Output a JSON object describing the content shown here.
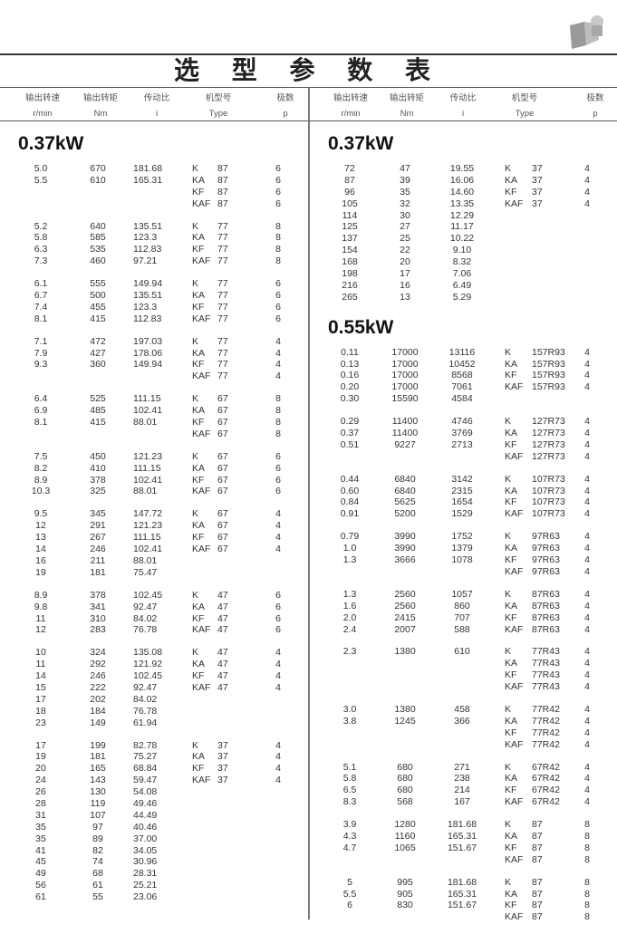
{
  "title": "选 型 参 数 表",
  "photo_icon": "gear-motor-photo",
  "headers": [
    {
      "cn": "输出转速",
      "en": "r/min"
    },
    {
      "cn": "输出转矩",
      "en": "Nm"
    },
    {
      "cn": "传动比",
      "en": "i"
    },
    {
      "cn": "机型号",
      "en": "Type"
    },
    {
      "cn": "极数",
      "en": "p"
    }
  ],
  "left": [
    {
      "power": "0.37kW",
      "groups": [
        [
          [
            "5.0",
            "670",
            "181.68",
            "K",
            "87",
            "6"
          ],
          [
            "5.5",
            "610",
            "165.31",
            "KA",
            "87",
            "6"
          ],
          [
            "",
            "",
            "",
            "KF",
            "87",
            "6"
          ],
          [
            "",
            "",
            "",
            "KAF",
            "87",
            "6"
          ]
        ],
        [
          [
            "5.2",
            "640",
            "135.51",
            "K",
            "77",
            "8"
          ],
          [
            "5.8",
            "585",
            "123.3",
            "KA",
            "77",
            "8"
          ],
          [
            "6.3",
            "535",
            "112.83",
            "KF",
            "77",
            "8"
          ],
          [
            "7.3",
            "460",
            "97.21",
            "KAF",
            "77",
            "8"
          ]
        ],
        [
          [
            "6.1",
            "555",
            "149.94",
            "K",
            "77",
            "6"
          ],
          [
            "6.7",
            "500",
            "135.51",
            "KA",
            "77",
            "6"
          ],
          [
            "7.4",
            "455",
            "123.3",
            "KF",
            "77",
            "6"
          ],
          [
            "8.1",
            "415",
            "112.83",
            "KAF",
            "77",
            "6"
          ]
        ],
        [
          [
            "7.1",
            "472",
            "197.03",
            "K",
            "77",
            "4"
          ],
          [
            "7.9",
            "427",
            "178.06",
            "KA",
            "77",
            "4"
          ],
          [
            "9.3",
            "360",
            "149.94",
            "KF",
            "77",
            "4"
          ],
          [
            "",
            "",
            "",
            "KAF",
            "77",
            "4"
          ]
        ],
        [
          [
            "6.4",
            "525",
            "111.15",
            "K",
            "67",
            "8"
          ],
          [
            "6.9",
            "485",
            "102.41",
            "KA",
            "67",
            "8"
          ],
          [
            "8.1",
            "415",
            "88.01",
            "KF",
            "67",
            "8"
          ],
          [
            "",
            "",
            "",
            "KAF",
            "67",
            "8"
          ]
        ],
        [
          [
            "7.5",
            "450",
            "121.23",
            "K",
            "67",
            "6"
          ],
          [
            "8.2",
            "410",
            "111.15",
            "KA",
            "67",
            "6"
          ],
          [
            "8.9",
            "378",
            "102.41",
            "KF",
            "67",
            "6"
          ],
          [
            "10.3",
            "325",
            "88.01",
            "KAF",
            "67",
            "6"
          ]
        ],
        [
          [
            "9.5",
            "345",
            "147.72",
            "K",
            "67",
            "4"
          ],
          [
            "12",
            "291",
            "121.23",
            "KA",
            "67",
            "4"
          ],
          [
            "13",
            "267",
            "111.15",
            "KF",
            "67",
            "4"
          ],
          [
            "14",
            "246",
            "102.41",
            "KAF",
            "67",
            "4"
          ],
          [
            "16",
            "211",
            "88.01",
            "",
            "",
            ""
          ],
          [
            "19",
            "181",
            "75.47",
            "",
            "",
            ""
          ]
        ],
        [
          [
            "8.9",
            "378",
            "102.45",
            "K",
            "47",
            "6"
          ],
          [
            "9.8",
            "341",
            "92.47",
            "KA",
            "47",
            "6"
          ],
          [
            "11",
            "310",
            "84.02",
            "KF",
            "47",
            "6"
          ],
          [
            "12",
            "283",
            "76.78",
            "KAF",
            "47",
            "6"
          ]
        ],
        [
          [
            "10",
            "324",
            "135.08",
            "K",
            "47",
            "4"
          ],
          [
            "11",
            "292",
            "121.92",
            "KA",
            "47",
            "4"
          ],
          [
            "14",
            "246",
            "102.45",
            "KF",
            "47",
            "4"
          ],
          [
            "15",
            "222",
            "92.47",
            "KAF",
            "47",
            "4"
          ],
          [
            "17",
            "202",
            "84.02",
            "",
            "",
            ""
          ],
          [
            "18",
            "184",
            "76.78",
            "",
            "",
            ""
          ],
          [
            "23",
            "149",
            "61.94",
            "",
            "",
            ""
          ]
        ],
        [
          [
            "17",
            "199",
            "82.78",
            "K",
            "37",
            "4"
          ],
          [
            "19",
            "181",
            "75.27",
            "KA",
            "37",
            "4"
          ],
          [
            "20",
            "165",
            "68.84",
            "KF",
            "37",
            "4"
          ],
          [
            "24",
            "143",
            "59.47",
            "KAF",
            "37",
            "4"
          ],
          [
            "26",
            "130",
            "54.08",
            "",
            "",
            ""
          ],
          [
            "28",
            "119",
            "49.46",
            "",
            "",
            ""
          ],
          [
            "31",
            "107",
            "44.49",
            "",
            "",
            ""
          ],
          [
            "35",
            "97",
            "40.46",
            "",
            "",
            ""
          ],
          [
            "35",
            "89",
            "37.00",
            "",
            "",
            ""
          ],
          [
            "41",
            "82",
            "34.05",
            "",
            "",
            ""
          ],
          [
            "45",
            "74",
            "30.96",
            "",
            "",
            ""
          ],
          [
            "49",
            "68",
            "28.31",
            "",
            "",
            ""
          ],
          [
            "56",
            "61",
            "25.21",
            "",
            "",
            ""
          ],
          [
            "61",
            "55",
            "23.06",
            "",
            "",
            ""
          ]
        ]
      ]
    }
  ],
  "right": [
    {
      "power": "0.37kW",
      "groups": [
        [
          [
            "72",
            "47",
            "19.55",
            "K",
            "37",
            "4"
          ],
          [
            "87",
            "39",
            "16.06",
            "KA",
            "37",
            "4"
          ],
          [
            "96",
            "35",
            "14.60",
            "KF",
            "37",
            "4"
          ],
          [
            "105",
            "32",
            "13.35",
            "KAF",
            "37",
            "4"
          ],
          [
            "114",
            "30",
            "12.29",
            "",
            "",
            ""
          ],
          [
            "125",
            "27",
            "11.17",
            "",
            "",
            ""
          ],
          [
            "137",
            "25",
            "10.22",
            "",
            "",
            ""
          ],
          [
            "154",
            "22",
            "9.10",
            "",
            "",
            ""
          ],
          [
            "168",
            "20",
            "8.32",
            "",
            "",
            ""
          ],
          [
            "198",
            "17",
            "7.06",
            "",
            "",
            ""
          ],
          [
            "216",
            "16",
            "6.49",
            "",
            "",
            ""
          ],
          [
            "265",
            "13",
            "5.29",
            "",
            "",
            ""
          ]
        ]
      ]
    },
    {
      "power": "0.55kW",
      "groups": [
        [
          [
            "0.11",
            "17000",
            "13116",
            "K",
            "157R93",
            "4"
          ],
          [
            "0.13",
            "17000",
            "10452",
            "KA",
            "157R93",
            "4"
          ],
          [
            "0.16",
            "17000",
            "8568",
            "KF",
            "157R93",
            "4"
          ],
          [
            "0.20",
            "17000",
            "7061",
            "KAF",
            "157R93",
            "4"
          ],
          [
            "0.30",
            "15590",
            "4584",
            "",
            "",
            ""
          ]
        ],
        [
          [
            "0.29",
            "11400",
            "4746",
            "K",
            "127R73",
            "4"
          ],
          [
            "0.37",
            "11400",
            "3769",
            "KA",
            "127R73",
            "4"
          ],
          [
            "0.51",
            "9227",
            "2713",
            "KF",
            "127R73",
            "4"
          ],
          [
            "",
            "",
            "",
            "KAF",
            "127R73",
            "4"
          ]
        ],
        [
          [
            "0.44",
            "6840",
            "3142",
            "K",
            "107R73",
            "4"
          ],
          [
            "0.60",
            "6840",
            "2315",
            "KA",
            "107R73",
            "4"
          ],
          [
            "0.84",
            "5625",
            "1654",
            "KF",
            "107R73",
            "4"
          ],
          [
            "0.91",
            "5200",
            "1529",
            "KAF",
            "107R73",
            "4"
          ]
        ],
        [
          [
            "0.79",
            "3990",
            "1752",
            "K",
            "97R63",
            "4"
          ],
          [
            "1.0",
            "3990",
            "1379",
            "KA",
            "97R63",
            "4"
          ],
          [
            "1.3",
            "3666",
            "1078",
            "KF",
            "97R63",
            "4"
          ],
          [
            "",
            "",
            "",
            "KAF",
            "97R63",
            "4"
          ]
        ],
        [
          [
            "1.3",
            "2560",
            "1057",
            "K",
            "87R63",
            "4"
          ],
          [
            "1.6",
            "2560",
            "860",
            "KA",
            "87R63",
            "4"
          ],
          [
            "2.0",
            "2415",
            "707",
            "KF",
            "87R63",
            "4"
          ],
          [
            "2.4",
            "2007",
            "588",
            "KAF",
            "87R63",
            "4"
          ]
        ],
        [
          [
            "2.3",
            "1380",
            "610",
            "K",
            "77R43",
            "4"
          ],
          [
            "",
            "",
            "",
            "KA",
            "77R43",
            "4"
          ],
          [
            "",
            "",
            "",
            "KF",
            "77R43",
            "4"
          ],
          [
            "",
            "",
            "",
            "KAF",
            "77R43",
            "4"
          ]
        ],
        [
          [
            "3.0",
            "1380",
            "458",
            "K",
            "77R42",
            "4"
          ],
          [
            "3.8",
            "1245",
            "366",
            "KA",
            "77R42",
            "4"
          ],
          [
            "",
            "",
            "",
            "KF",
            "77R42",
            "4"
          ],
          [
            "",
            "",
            "",
            "KAF",
            "77R42",
            "4"
          ]
        ],
        [
          [
            "5.1",
            "680",
            "271",
            "K",
            "67R42",
            "4"
          ],
          [
            "5.8",
            "680",
            "238",
            "KA",
            "67R42",
            "4"
          ],
          [
            "6.5",
            "680",
            "214",
            "KF",
            "67R42",
            "4"
          ],
          [
            "8.3",
            "568",
            "167",
            "KAF",
            "67R42",
            "4"
          ]
        ],
        [
          [
            "3.9",
            "1280",
            "181.68",
            "K",
            "87",
            "8"
          ],
          [
            "4.3",
            "1160",
            "165.31",
            "KA",
            "87",
            "8"
          ],
          [
            "4.7",
            "1065",
            "151.67",
            "KF",
            "87",
            "8"
          ],
          [
            "",
            "",
            "",
            "KAF",
            "87",
            "8"
          ]
        ],
        [
          [
            "5",
            "995",
            "181.68",
            "K",
            "87",
            "8"
          ],
          [
            "5.5",
            "905",
            "165.31",
            "KA",
            "87",
            "8"
          ],
          [
            "6",
            "830",
            "151.67",
            "KF",
            "87",
            "8"
          ],
          [
            "",
            "",
            "",
            "KAF",
            "87",
            "8"
          ]
        ]
      ]
    }
  ]
}
